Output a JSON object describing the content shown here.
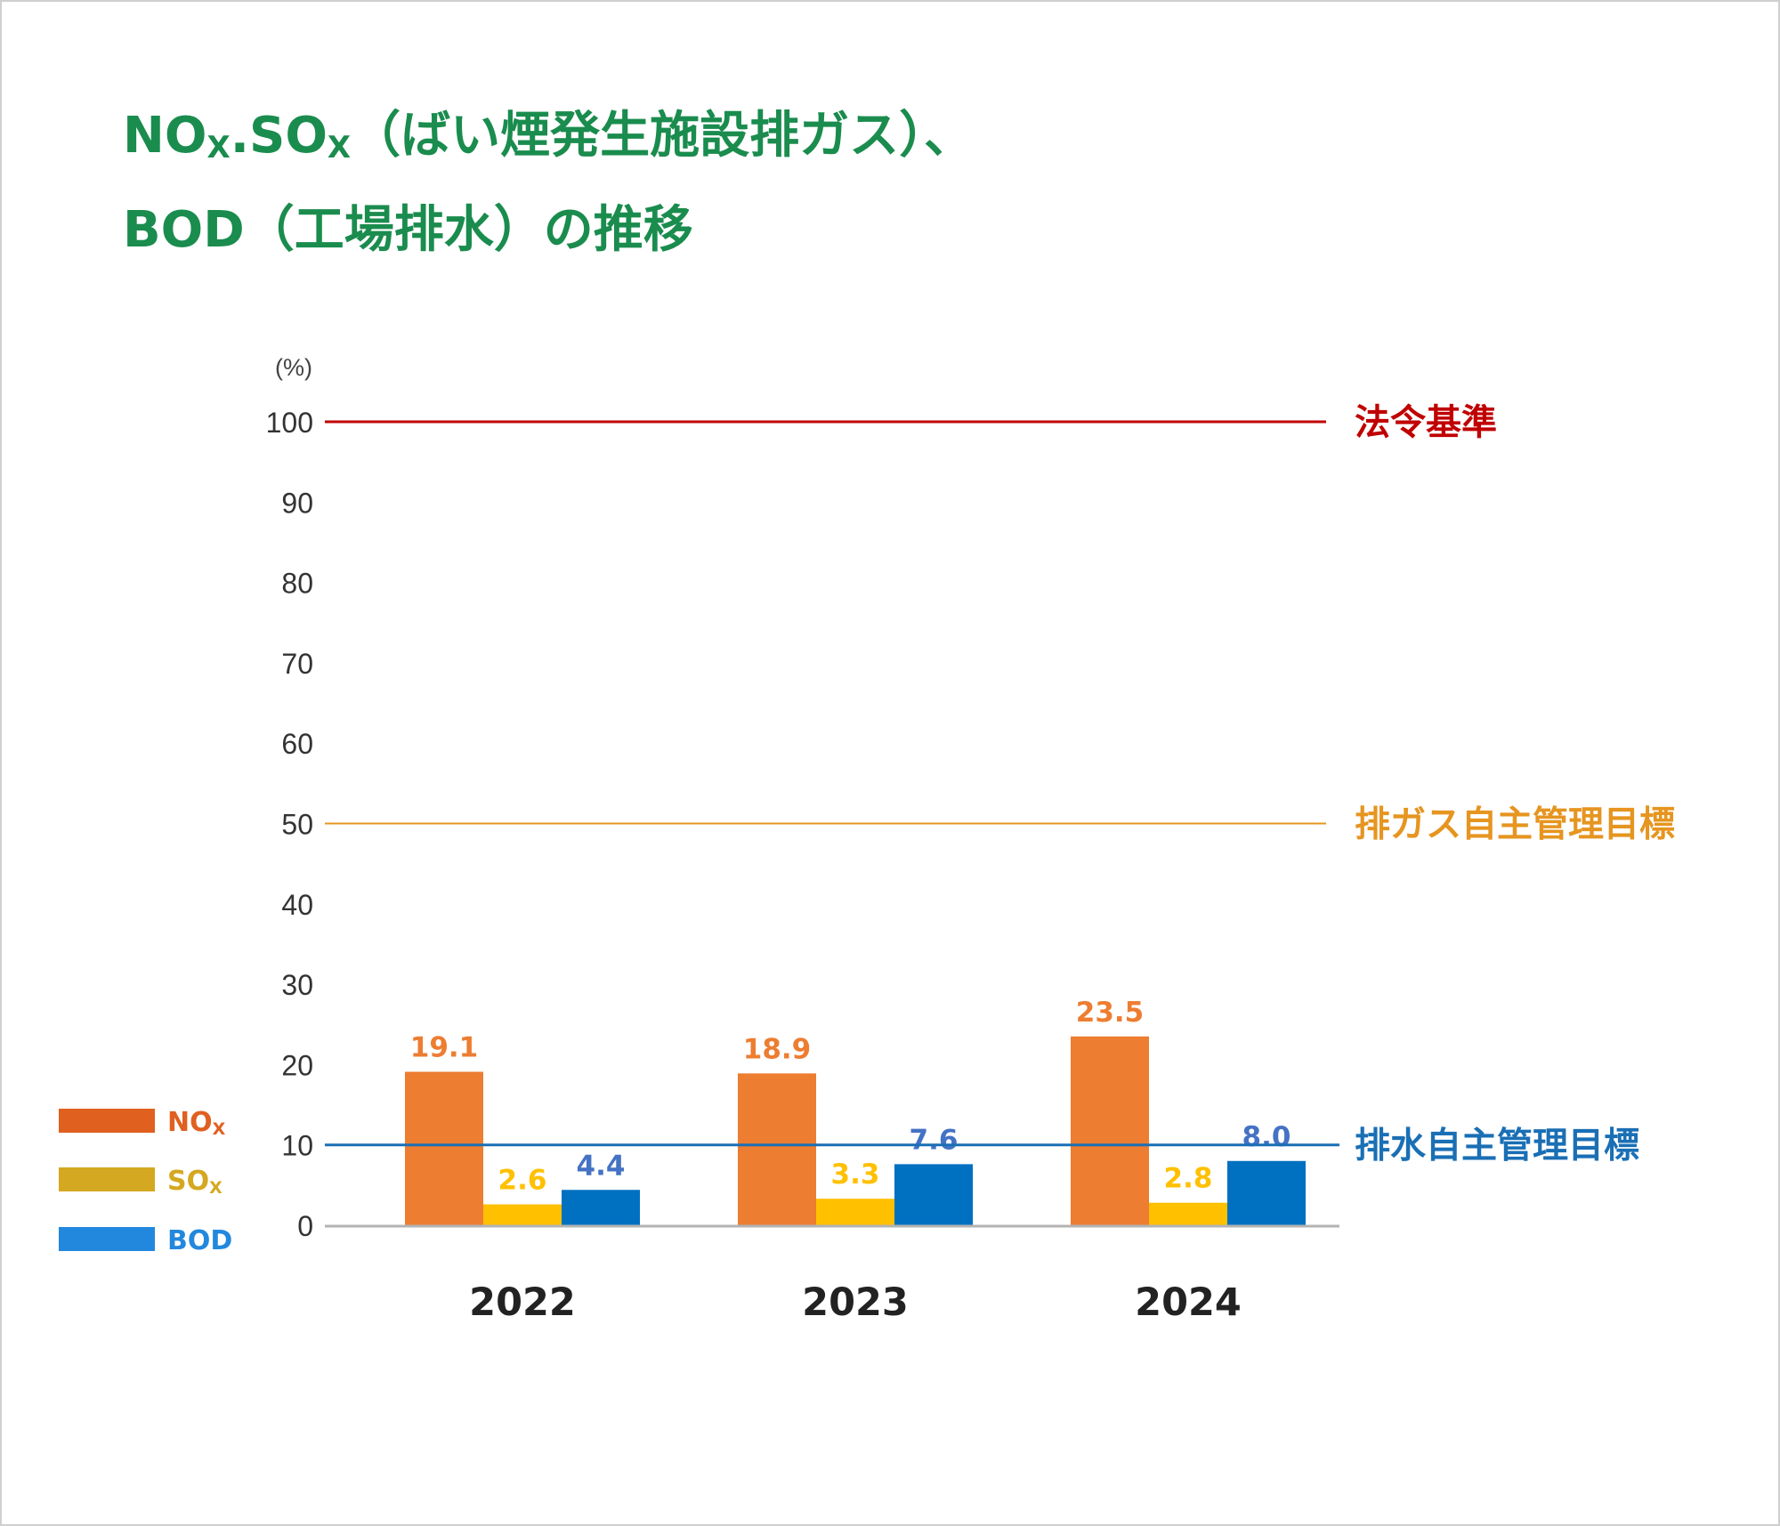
{
  "title": {
    "line1_a": "NO",
    "line1_a_sub": "X",
    "line1_sep": ".",
    "line1_b": "SO",
    "line1_b_sub": "X",
    "line1_rest": "（ばい煙発生施設排ガス）、",
    "line2": "BOD（工場排水）の推移"
  },
  "chart_data": {
    "type": "bar",
    "ylabel": "(%)",
    "ylim": [
      0,
      100
    ],
    "yticks": [
      "0",
      "10",
      "20",
      "30",
      "40",
      "50",
      "60",
      "70",
      "80",
      "90",
      "100"
    ],
    "categories": [
      "2022",
      "2023",
      "2024"
    ],
    "series": [
      {
        "name": "NOx",
        "color": "#ed7d31",
        "values": [
          19.1,
          18.9,
          23.5
        ],
        "labels": [
          "19.1",
          "18.9",
          "23.5"
        ],
        "label_color": "#ed7d31"
      },
      {
        "name": "SOx",
        "color": "#ffc000",
        "values": [
          2.6,
          3.3,
          2.8
        ],
        "labels": [
          "2.6",
          "3.3",
          "2.8"
        ],
        "label_color": "#ffc000"
      },
      {
        "name": "BOD",
        "color": "#0070c0",
        "values": [
          4.4,
          7.6,
          8.0
        ],
        "labels": [
          "4.4",
          "7.6",
          "8.0"
        ],
        "label_color": "#4472c4"
      }
    ],
    "legend": {
      "position": "bottom-left",
      "items": [
        {
          "main": "NO",
          "sub": "X",
          "color": "#e06020"
        },
        {
          "main": "SO",
          "sub": "X",
          "color": "#d4a820"
        },
        {
          "main": "BOD",
          "sub": "",
          "color": "#2288dd"
        }
      ]
    },
    "reference_lines": [
      {
        "value": 100,
        "label": "法令基準",
        "color": "#c00000"
      },
      {
        "value": 50,
        "label": "排ガス自主管理目標",
        "color": "#e69520"
      },
      {
        "value": 10,
        "label": "排水自主管理目標",
        "color": "#1a6fb5"
      }
    ],
    "grid": false
  }
}
